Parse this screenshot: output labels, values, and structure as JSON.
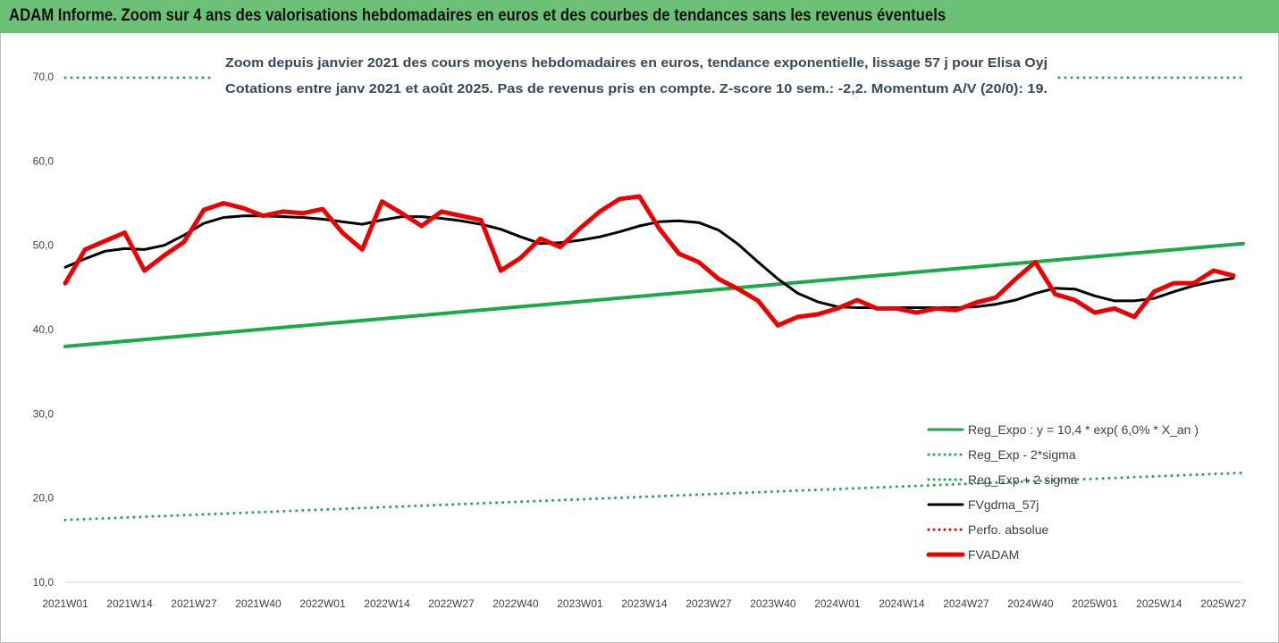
{
  "header": {
    "title": "ADAM Informe. Zoom sur 4 ans des valorisations hebdomadaires en euros et des courbes de tendances sans les revenus éventuels"
  },
  "chart_data": {
    "type": "line",
    "title": "Zoom depuis janvier 2021 des cours moyens hebdomadaires en euros, tendance exponentielle, lissage 57 j pour Elisa Oyj",
    "subtitle": "Cotations entre janv 2021 et août 2025. Pas de revenus pris en compte. Z-score 10 sem.: -2,2. Momentum A/V (20/0): 19.",
    "xlabel": "",
    "ylabel": "",
    "ylim": [
      10,
      70
    ],
    "y_ticks": [
      "10,0",
      "20,0",
      "30,0",
      "40,0",
      "50,0",
      "60,0",
      "70,0"
    ],
    "x_ticks": [
      "2021W01",
      "2021W14",
      "2021W27",
      "2021W40",
      "2022W01",
      "2022W14",
      "2022W27",
      "2022W40",
      "2023W01",
      "2023W14",
      "2023W27",
      "2023W40",
      "2024W01",
      "2024W14",
      "2024W27",
      "2024W40",
      "2025W01",
      "2025W14",
      "2025W27"
    ],
    "grid": false,
    "legend_position": "bottom-right",
    "x_weeks": [
      0,
      4,
      8,
      12,
      16,
      20,
      24,
      28,
      32,
      36,
      40,
      44,
      48,
      52,
      56,
      60,
      64,
      68,
      72,
      76,
      80,
      84,
      88,
      92,
      96,
      100,
      104,
      108,
      112,
      116,
      120,
      124,
      128,
      132,
      136,
      140,
      144,
      148,
      152,
      156,
      160,
      164,
      168,
      172,
      176,
      180,
      184,
      188,
      192,
      196,
      200,
      204,
      208,
      212,
      216,
      220,
      224,
      228,
      232,
      236
    ],
    "series": [
      {
        "name": "Reg_Expo : y = 10,4 * exp( 6,0% *  X_an )",
        "color": "#1aaa4a",
        "style": "solid",
        "x_weeks": [
          0,
          238
        ],
        "values": [
          38.0,
          50.2
        ]
      },
      {
        "name": "Reg_Exp - 2*sigma",
        "color": "#1aaa4a",
        "style": "dotted",
        "x_weeks": [
          0,
          238
        ],
        "values": [
          17.4,
          23.0
        ]
      },
      {
        "name": "Reg_Exp + 2 sigma",
        "color": "#1aaa4a",
        "style": "dotted",
        "x_weeks": [
          0,
          238
        ],
        "values": [
          69.9,
          69.9
        ]
      },
      {
        "name": "FVgdma_57j",
        "color": "#000000",
        "style": "solid",
        "values": [
          47.4,
          48.4,
          49.3,
          49.6,
          49.5,
          50.0,
          51.2,
          52.6,
          53.3,
          53.5,
          53.5,
          53.4,
          53.3,
          53.1,
          52.8,
          52.5,
          53.0,
          53.4,
          53.4,
          53.2,
          52.9,
          52.5,
          51.9,
          51.0,
          50.2,
          50.3,
          50.6,
          51.0,
          51.6,
          52.3,
          52.8,
          52.9,
          52.7,
          51.8,
          50.1,
          48.0,
          46.0,
          44.3,
          43.3,
          42.7,
          42.6,
          42.6,
          42.6,
          42.6,
          42.6,
          42.6,
          42.7,
          43.0,
          43.5,
          44.3,
          44.9,
          44.8,
          44.0,
          43.4,
          43.4,
          43.7,
          44.5,
          45.2,
          45.7,
          46.1
        ]
      },
      {
        "name": "Perfo. absolue",
        "color": "#e00000",
        "style": "dotted",
        "values": []
      },
      {
        "name": "FVADAM",
        "color": "#ee0000",
        "style": "solid",
        "values": [
          45.5,
          49.5,
          50.5,
          51.5,
          47.0,
          48.8,
          50.4,
          54.2,
          55.0,
          54.4,
          53.5,
          54.0,
          53.8,
          54.3,
          51.5,
          49.5,
          55.2,
          53.8,
          52.3,
          54.0,
          53.5,
          53.0,
          47.0,
          48.5,
          50.8,
          49.8,
          52.0,
          54.0,
          55.5,
          55.8,
          52.0,
          49.0,
          48.0,
          46.0,
          44.8,
          43.4,
          40.5,
          41.5,
          41.8,
          42.5,
          43.5,
          42.5,
          42.5,
          42.0,
          42.5,
          42.3,
          43.2,
          43.8,
          46.0,
          48.0,
          44.2,
          43.5,
          42.0,
          42.5,
          41.5,
          44.5,
          45.5,
          45.5,
          47.0,
          46.4
        ]
      }
    ]
  }
}
